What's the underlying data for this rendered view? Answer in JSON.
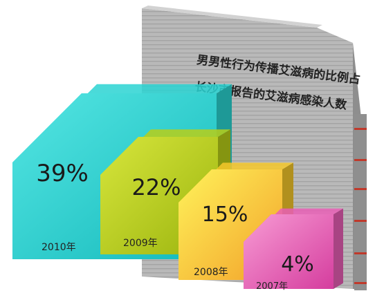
{
  "chart_data": {
    "type": "bar",
    "title_lines": [
      "男男性行为传播艾滋病的比例占",
      "长沙市报告的艾滋病感染人数"
    ],
    "categories": [
      "2010年",
      "2009年",
      "2008年",
      "2007年"
    ],
    "values": [
      39,
      22,
      15,
      4
    ],
    "value_labels": [
      "39%",
      "22%",
      "15%",
      "4%"
    ],
    "colors": [
      "#2ad4d2",
      "#b9cf18",
      "#f6c82a",
      "#e95fb6"
    ]
  }
}
